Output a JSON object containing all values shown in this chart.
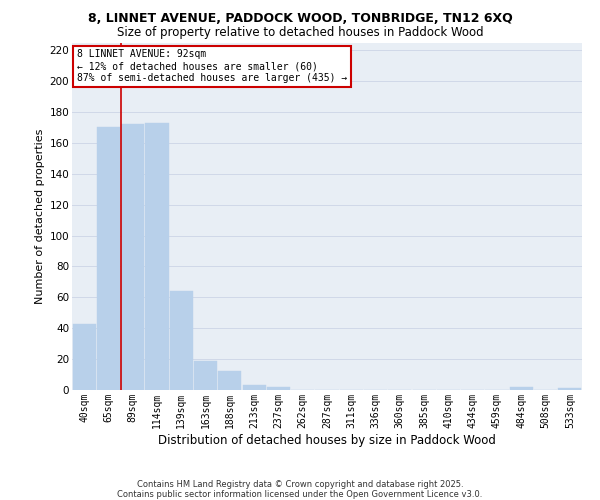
{
  "title": "8, LINNET AVENUE, PADDOCK WOOD, TONBRIDGE, TN12 6XQ",
  "subtitle": "Size of property relative to detached houses in Paddock Wood",
  "xlabel": "Distribution of detached houses by size in Paddock Wood",
  "ylabel": "Number of detached properties",
  "categories": [
    "40sqm",
    "65sqm",
    "89sqm",
    "114sqm",
    "139sqm",
    "163sqm",
    "188sqm",
    "213sqm",
    "237sqm",
    "262sqm",
    "287sqm",
    "311sqm",
    "336sqm",
    "360sqm",
    "385sqm",
    "410sqm",
    "434sqm",
    "459sqm",
    "484sqm",
    "508sqm",
    "533sqm"
  ],
  "values": [
    43,
    170,
    172,
    173,
    64,
    19,
    12,
    3,
    2,
    0,
    0,
    0,
    0,
    0,
    0,
    0,
    0,
    0,
    2,
    0,
    1
  ],
  "bar_color": "#b8d0ea",
  "highlight_index": 2,
  "highlight_line_color": "#cc0000",
  "annotation_line1": "8 LINNET AVENUE: 92sqm",
  "annotation_line2": "← 12% of detached houses are smaller (60)",
  "annotation_line3": "87% of semi-detached houses are larger (435) →",
  "annotation_box_color": "#cc0000",
  "ylim": [
    0,
    225
  ],
  "yticks": [
    0,
    20,
    40,
    60,
    80,
    100,
    120,
    140,
    160,
    180,
    200,
    220
  ],
  "grid_color": "#d0d8e8",
  "bg_color": "#e8eef5",
  "footer1": "Contains HM Land Registry data © Crown copyright and database right 2025.",
  "footer2": "Contains public sector information licensed under the Open Government Licence v3.0.",
  "title_fontsize": 9,
  "subtitle_fontsize": 8.5,
  "tick_fontsize": 7,
  "ylabel_fontsize": 8,
  "xlabel_fontsize": 8.5
}
